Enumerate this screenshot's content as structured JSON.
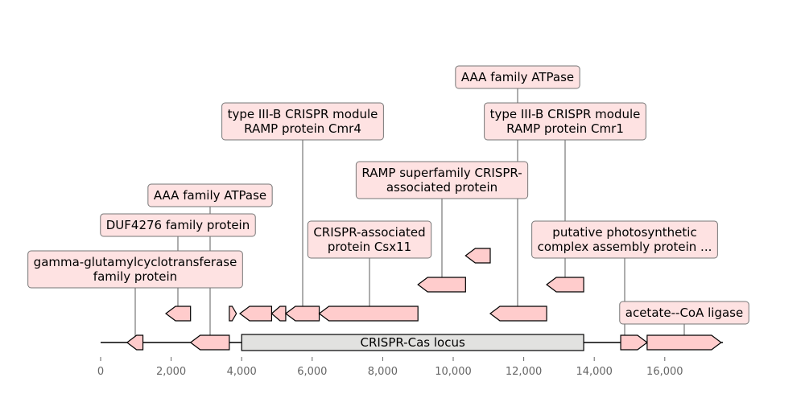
{
  "genes": [
    {
      "start": 750,
      "end": 1200,
      "strand": -1,
      "row": 0,
      "label": [
        "gamma-glutamylcyclotransferase",
        "family protein"
      ]
    },
    {
      "start": 2550,
      "end": 3650,
      "strand": -1,
      "row": 0,
      "label": [
        "AAA family ATPase"
      ]
    },
    {
      "start": 1850,
      "end": 2550,
      "strand": -1,
      "row": 1,
      "label": [
        "DUF4276 family protein"
      ]
    },
    {
      "start": 3650,
      "end": 3850,
      "strand": 1,
      "row": 1,
      "label": []
    },
    {
      "start": 3950,
      "end": 4850,
      "strand": -1,
      "row": 1,
      "label": []
    },
    {
      "start": 4850,
      "end": 5250,
      "strand": -1,
      "row": 1,
      "label": []
    },
    {
      "start": 5250,
      "end": 6200,
      "strand": -1,
      "row": 1,
      "label": [
        "type III-B CRISPR module",
        "RAMP protein Cmr4"
      ]
    },
    {
      "start": 6200,
      "end": 9000,
      "strand": -1,
      "row": 1,
      "label": [
        "CRISPR-associated",
        "protein Csx11"
      ]
    },
    {
      "start": 9000,
      "end": 10350,
      "strand": -1,
      "row": 2,
      "label": [
        "RAMP superfamily CRISPR-",
        "associated protein"
      ]
    },
    {
      "start": 10350,
      "end": 11050,
      "strand": -1,
      "row": 3,
      "label": []
    },
    {
      "start": 11050,
      "end": 12650,
      "strand": -1,
      "row": 1,
      "label": [
        "AAA family ATPase"
      ]
    },
    {
      "start": 12650,
      "end": 13700,
      "strand": -1,
      "row": 2,
      "label": [
        "type III-B CRISPR module",
        "RAMP protein Cmr1"
      ]
    },
    {
      "start": 14750,
      "end": 15500,
      "strand": 1,
      "row": 0,
      "label": [
        "putative photosynthetic",
        "complex assembly protein ..."
      ]
    },
    {
      "start": 15500,
      "end": 17600,
      "strand": 1,
      "row": 0,
      "label": [
        "acetate--CoA ligase"
      ]
    }
  ],
  "locus": {
    "start": 4000,
    "end": 13700,
    "label": "CRISPR-Cas locus"
  },
  "axis": {
    "min": 0,
    "max": 17650,
    "ticks": [
      0,
      2000,
      4000,
      6000,
      8000,
      10000,
      12000,
      14000,
      16000
    ]
  },
  "colors": {
    "gene_fill": "#ffcccc",
    "label_fill": "#fee2e2",
    "locus_fill": "#e2e2e0"
  }
}
